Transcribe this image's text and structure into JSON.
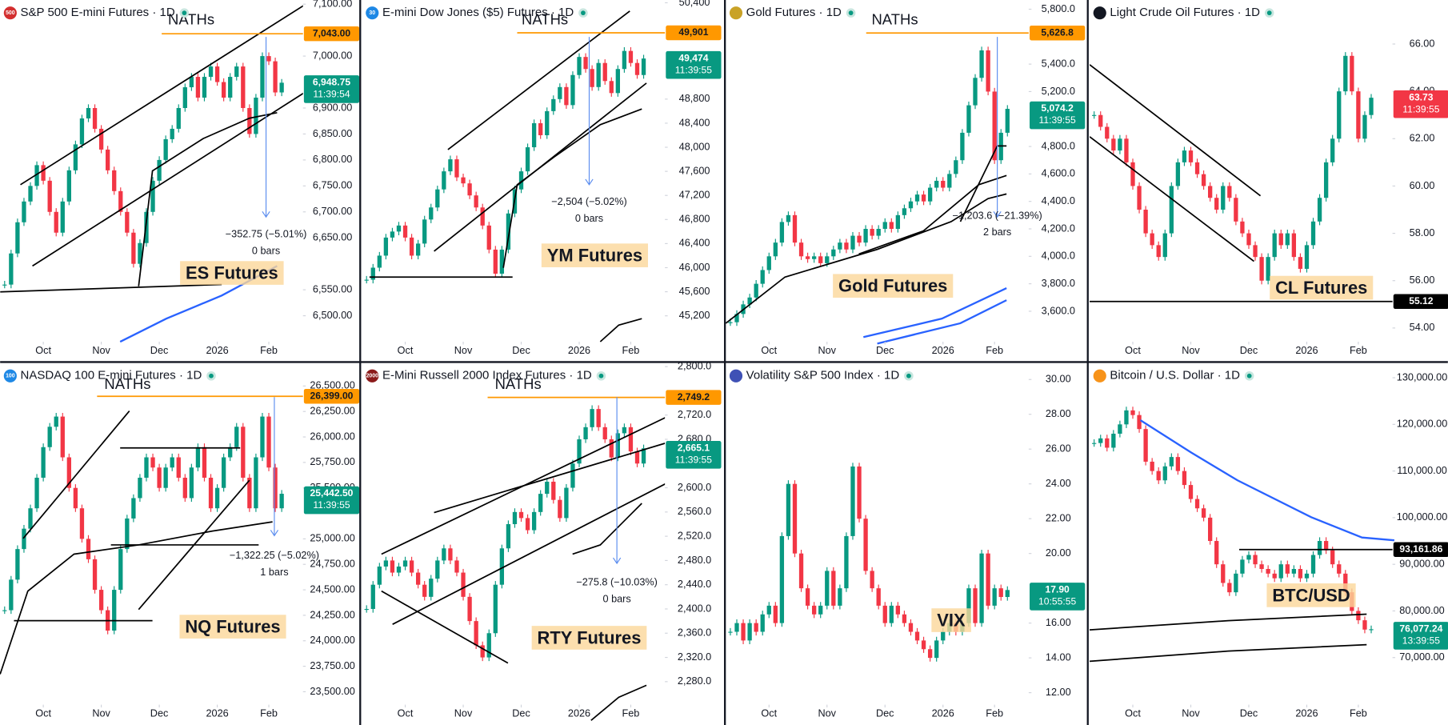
{
  "chart_data": [
    {
      "type": "candlestick",
      "title": "S&P 500 E-mini Futures · 1D",
      "badge": "500",
      "values": [
        6560,
        6620,
        6680,
        6720,
        6750,
        6790,
        6760,
        6700,
        6660,
        6720,
        6780,
        6830,
        6880,
        6900,
        6860,
        6820,
        6780,
        6740,
        6700,
        6660,
        6600,
        6640,
        6700,
        6760,
        6800,
        6840,
        6860,
        6900,
        6940,
        6960,
        6920,
        6960,
        6980,
        6950,
        6920,
        6960,
        6980,
        6900,
        6850,
        6920,
        7000,
        6990,
        6930,
        6948.75
      ],
      "xlim": [
        -0.7,
        46.3
      ],
      "xticks": [
        {
          "value": 6,
          "label": "Oct"
        },
        {
          "value": 15,
          "label": "Nov"
        },
        {
          "value": 24,
          "label": "Dec"
        },
        {
          "value": 33,
          "label": "2026"
        },
        {
          "value": 41,
          "label": "Feb"
        }
      ],
      "ylim": [
        6450,
        7108
      ],
      "yticks": [
        {
          "value": 6500,
          "label": "6,500.00"
        },
        {
          "value": 6550,
          "label": "6,550.00"
        },
        {
          "value": 6650,
          "label": "6,650.00"
        },
        {
          "value": 6700,
          "label": "6,700.00"
        },
        {
          "value": 6750,
          "label": "6,750.00"
        },
        {
          "value": 6800,
          "label": "6,800.00"
        },
        {
          "value": 6850,
          "label": "6,850.00"
        },
        {
          "value": 6900,
          "label": "6,900.00"
        },
        {
          "value": 7000,
          "label": "7,000.00"
        },
        {
          "value": 7100,
          "label": "7,100.00"
        }
      ],
      "level": {
        "value": 7043,
        "label": "7,043.00",
        "color": "#ff9800",
        "note": "NATHs"
      },
      "last": {
        "value": 6948.75,
        "label": "6,948.75",
        "time": "11:39:54",
        "color": "#089981"
      },
      "tag": "ES Futures",
      "measure": [
        "−352.75 (−5.01%)",
        "0 bars"
      ]
    },
    {
      "type": "candlestick",
      "title": "E-mini Dow Jones ($5) Futures · 1D",
      "badge": "30",
      "values": [
        45800,
        46000,
        46200,
        46500,
        46600,
        46700,
        46500,
        46200,
        46400,
        46800,
        47000,
        47300,
        47600,
        47800,
        47500,
        47400,
        47200,
        47000,
        46700,
        46300,
        45900,
        46300,
        46900,
        47300,
        47600,
        48000,
        48400,
        48200,
        48600,
        48800,
        49000,
        48700,
        49200,
        49500,
        49300,
        49000,
        49400,
        49100,
        48900,
        49300,
        49600,
        49400,
        49200,
        49474
      ],
      "xlim": [
        -0.7,
        46.3
      ],
      "xticks": [
        {
          "value": 6,
          "label": "Oct"
        },
        {
          "value": 15,
          "label": "Nov"
        },
        {
          "value": 24,
          "label": "Dec"
        },
        {
          "value": 33,
          "label": "2026"
        },
        {
          "value": 41,
          "label": "Feb"
        }
      ],
      "ylim": [
        44770,
        50446
      ],
      "yticks": [
        {
          "value": 45200,
          "label": "45,200"
        },
        {
          "value": 45600,
          "label": "45,600"
        },
        {
          "value": 46000,
          "label": "46,000"
        },
        {
          "value": 46400,
          "label": "46,400"
        },
        {
          "value": 46800,
          "label": "46,800"
        },
        {
          "value": 47200,
          "label": "47,200"
        },
        {
          "value": 47600,
          "label": "47,600"
        },
        {
          "value": 48000,
          "label": "48,000"
        },
        {
          "value": 48400,
          "label": "48,400"
        },
        {
          "value": 48800,
          "label": "48,800"
        },
        {
          "value": 50400,
          "label": "50,400"
        }
      ],
      "level": {
        "value": 49901,
        "label": "49,901",
        "color": "#ff9800",
        "note": "NATHs"
      },
      "last": {
        "value": 49474,
        "label": "49,474",
        "time": "11:39:55",
        "color": "#089981"
      },
      "tag": "YM Futures",
      "measure": [
        "−2,504 (−5.02%)",
        "0 bars"
      ]
    },
    {
      "type": "candlestick",
      "title": "Gold Futures · 1D",
      "values": [
        3520,
        3580,
        3650,
        3700,
        3800,
        3900,
        4000,
        4100,
        4250,
        4300,
        4100,
        4000,
        3980,
        4000,
        3950,
        4000,
        4050,
        4100,
        4050,
        4150,
        4100,
        4200,
        4150,
        4200,
        4250,
        4200,
        4300,
        4350,
        4400,
        4450,
        4400,
        4500,
        4550,
        4500,
        4600,
        4700,
        4900,
        5100,
        5300,
        5500,
        5200,
        4700,
        4900,
        5074.2
      ],
      "xlim": [
        -0.7,
        46.3
      ],
      "xticks": [
        {
          "value": 6,
          "label": "Oct"
        },
        {
          "value": 15,
          "label": "Nov"
        },
        {
          "value": 24,
          "label": "Dec"
        },
        {
          "value": 33,
          "label": "2026"
        },
        {
          "value": 41,
          "label": "Feb"
        }
      ],
      "ylim": [
        3378,
        5867
      ],
      "yticks": [
        {
          "value": 3600,
          "label": "3,600.0"
        },
        {
          "value": 3800,
          "label": "3,800.0"
        },
        {
          "value": 4000,
          "label": "4,000.0"
        },
        {
          "value": 4200,
          "label": "4,200.0"
        },
        {
          "value": 4400,
          "label": "4,400.0"
        },
        {
          "value": 4600,
          "label": "4,600.0"
        },
        {
          "value": 4800,
          "label": "4,800.0"
        },
        {
          "value": 5200,
          "label": "5,200.0"
        },
        {
          "value": 5400,
          "label": "5,400.0"
        },
        {
          "value": 5800,
          "label": "5,800.0"
        }
      ],
      "level": {
        "value": 5626.8,
        "label": "5,626.8",
        "color": "#ff9800",
        "note": "NATHs"
      },
      "last": {
        "value": 5074.2,
        "label": "5,074.2",
        "time": "11:39:55",
        "color": "#089981"
      },
      "tag": "Gold Futures",
      "measure": [
        "−1,203.6 (−21.39%)",
        "2 bars"
      ]
    },
    {
      "type": "candlestick",
      "title": "Light Crude Oil Futures · 1D",
      "values": [
        63,
        62.5,
        62,
        61.5,
        62,
        61,
        60,
        59,
        58,
        57.5,
        57,
        58,
        60,
        61,
        61.5,
        61,
        60.5,
        60,
        59.5,
        59,
        60,
        59.5,
        58.5,
        58,
        57.5,
        57,
        56,
        57,
        58,
        57.5,
        58,
        57,
        56.5,
        57.5,
        58.5,
        59.5,
        61,
        62,
        64,
        65.5,
        64,
        62,
        63,
        63.73
      ],
      "xlim": [
        -0.7,
        46.3
      ],
      "xticks": [
        {
          "value": 6,
          "label": "Oct"
        },
        {
          "value": 15,
          "label": "Nov"
        },
        {
          "value": 24,
          "label": "Dec"
        },
        {
          "value": 33,
          "label": "2026"
        },
        {
          "value": 41,
          "label": "Feb"
        }
      ],
      "ylim": [
        53.42,
        67.86
      ],
      "yticks": [
        {
          "value": 54,
          "label": "54.00"
        },
        {
          "value": 56,
          "label": "56.00"
        },
        {
          "value": 58,
          "label": "58.00"
        },
        {
          "value": 60,
          "label": "60.00"
        },
        {
          "value": 62,
          "label": "62.00"
        },
        {
          "value": 64,
          "label": "64.00"
        },
        {
          "value": 66,
          "label": "66.00"
        }
      ],
      "level": {
        "value": 55.12,
        "label": "55.12",
        "color": "#000000"
      },
      "last": {
        "value": 63.73,
        "label": "63.73",
        "time": "11:39:55",
        "color": "#f23645"
      },
      "tag": "CL Futures"
    },
    {
      "type": "candlestick",
      "title": "NASDAQ 100 E-mini Futures · 1D",
      "badge": "100",
      "values": [
        24300,
        24600,
        24900,
        25100,
        25300,
        25600,
        25900,
        26100,
        26200,
        25800,
        25500,
        25300,
        25000,
        24800,
        24500,
        24300,
        24100,
        24500,
        24900,
        25200,
        25400,
        25600,
        25800,
        25700,
        25500,
        25700,
        25800,
        25600,
        25400,
        25700,
        25900,
        25600,
        25300,
        25500,
        25800,
        25900,
        26100,
        25600,
        25300,
        25800,
        26200,
        25700,
        25300,
        25442.5
      ],
      "xlim": [
        -0.7,
        46.3
      ],
      "xticks": [
        {
          "value": 6,
          "label": "Oct"
        },
        {
          "value": 15,
          "label": "Nov"
        },
        {
          "value": 24,
          "label": "Dec"
        },
        {
          "value": 33,
          "label": "2026"
        },
        {
          "value": 41,
          "label": "Feb"
        }
      ],
      "ylim": [
        23373,
        26726
      ],
      "yticks": [
        {
          "value": 23500,
          "label": "23,500.00"
        },
        {
          "value": 23750,
          "label": "23,750.00"
        },
        {
          "value": 24000,
          "label": "24,000.00"
        },
        {
          "value": 24250,
          "label": "24,250.00"
        },
        {
          "value": 24500,
          "label": "24,500.00"
        },
        {
          "value": 24750,
          "label": "24,750.00"
        },
        {
          "value": 25000,
          "label": "25,000.00"
        },
        {
          "value": 25500,
          "label": "25,500.00"
        },
        {
          "value": 25750,
          "label": "25,750.00"
        },
        {
          "value": 26000,
          "label": "26,000.00"
        },
        {
          "value": 26250,
          "label": "26,250.00"
        },
        {
          "value": 26500,
          "label": "26,500.00"
        }
      ],
      "level": {
        "value": 26399,
        "label": "26,399.00",
        "color": "#ff9800",
        "note": "NATHs"
      },
      "last": {
        "value": 25442.5,
        "label": "25,442.50",
        "time": "11:39:55",
        "color": "#089981"
      },
      "tag": "NQ Futures",
      "measure": [
        "−1,322.25 (−5.02%)",
        "1 bars"
      ]
    },
    {
      "type": "candlestick",
      "title": "E-Mini Russell 2000 Index Futures · 1D",
      "badge": "2000",
      "values": [
        2400,
        2440,
        2470,
        2480,
        2460,
        2470,
        2480,
        2460,
        2440,
        2420,
        2450,
        2480,
        2500,
        2480,
        2460,
        2420,
        2380,
        2340,
        2320,
        2360,
        2440,
        2500,
        2540,
        2560,
        2550,
        2530,
        2560,
        2590,
        2610,
        2580,
        2550,
        2600,
        2640,
        2680,
        2700,
        2730,
        2700,
        2680,
        2650,
        2690,
        2700,
        2660,
        2640,
        2665.1
      ],
      "xlim": [
        -0.7,
        46.3
      ],
      "xticks": [
        {
          "value": 6,
          "label": "Oct"
        },
        {
          "value": 15,
          "label": "Nov"
        },
        {
          "value": 24,
          "label": "Dec"
        },
        {
          "value": 33,
          "label": "2026"
        },
        {
          "value": 41,
          "label": "Feb"
        }
      ],
      "ylim": [
        2242,
        2806
      ],
      "yticks": [
        {
          "value": 2280,
          "label": "2,280.0"
        },
        {
          "value": 2320,
          "label": "2,320.0"
        },
        {
          "value": 2360,
          "label": "2,360.0"
        },
        {
          "value": 2400,
          "label": "2,400.0"
        },
        {
          "value": 2440,
          "label": "2,440.0"
        },
        {
          "value": 2480,
          "label": "2,480.0"
        },
        {
          "value": 2520,
          "label": "2,520.0"
        },
        {
          "value": 2560,
          "label": "2,560.0"
        },
        {
          "value": 2600,
          "label": "2,600.0"
        },
        {
          "value": 2680,
          "label": "2,680.0"
        },
        {
          "value": 2720,
          "label": "2,720.0"
        },
        {
          "value": 2800,
          "label": "2,800.0"
        }
      ],
      "level": {
        "value": 2749.2,
        "label": "2,749.2",
        "color": "#ff9800",
        "note": "NATHs"
      },
      "last": {
        "value": 2665.1,
        "label": "2,665.1",
        "time": "11:39:55",
        "color": "#089981"
      },
      "tag": "RTY Futures",
      "measure": [
        "−275.8 (−10.03%)",
        "0 bars"
      ]
    },
    {
      "type": "candlestick",
      "title": "Volatility S&P 500 Index · 1D",
      "values": [
        15.5,
        16,
        15,
        16,
        15.5,
        16.5,
        17,
        16,
        21,
        24,
        20,
        18,
        17,
        16.5,
        17,
        19,
        17,
        18,
        21,
        25,
        22,
        19,
        18,
        17,
        16,
        17,
        16.5,
        16,
        15.5,
        15,
        14.5,
        14,
        15,
        15.5,
        16,
        15.5,
        16,
        18,
        16,
        20,
        17,
        18,
        17.5,
        17.9
      ],
      "xlim": [
        -0.7,
        46.3
      ],
      "xticks": [
        {
          "value": 6,
          "label": "Oct"
        },
        {
          "value": 15,
          "label": "Nov"
        },
        {
          "value": 24,
          "label": "Dec"
        },
        {
          "value": 33,
          "label": "2026"
        },
        {
          "value": 41,
          "label": "Feb"
        }
      ],
      "ylim": [
        11.31,
        30.95
      ],
      "yticks": [
        {
          "value": 12,
          "label": "12.00"
        },
        {
          "value": 14,
          "label": "14.00"
        },
        {
          "value": 16,
          "label": "16.00"
        },
        {
          "value": 20,
          "label": "20.00"
        },
        {
          "value": 22,
          "label": "22.00"
        },
        {
          "value": 24,
          "label": "24.00"
        },
        {
          "value": 26,
          "label": "26.00"
        },
        {
          "value": 28,
          "label": "28.00"
        },
        {
          "value": 30,
          "label": "30.00"
        }
      ],
      "last": {
        "value": 17.9,
        "label": "17.90",
        "time": "10:55:55",
        "color": "#089981"
      },
      "tag": "VIX"
    },
    {
      "type": "candlestick",
      "title": "Bitcoin / U.S. Dollar · 1D",
      "values": [
        116000,
        117000,
        115000,
        118000,
        120000,
        123000,
        122000,
        119000,
        112000,
        110000,
        108000,
        111000,
        113000,
        110000,
        107000,
        104000,
        102000,
        100000,
        95000,
        90000,
        86000,
        84000,
        88000,
        91000,
        92000,
        90000,
        89000,
        88000,
        87000,
        90000,
        88000,
        89000,
        87000,
        88000,
        92000,
        95000,
        93000,
        90000,
        88000,
        84000,
        80000,
        78000,
        76000,
        76077.24
      ],
      "xlim": [
        -0.7,
        46.3
      ],
      "xticks": [
        {
          "value": 6,
          "label": "Oct"
        },
        {
          "value": 15,
          "label": "Nov"
        },
        {
          "value": 24,
          "label": "Dec"
        },
        {
          "value": 33,
          "label": "2026"
        },
        {
          "value": 41,
          "label": "Feb"
        }
      ],
      "ylim": [
        59900,
        133168
      ],
      "yticks": [
        {
          "value": 70000,
          "label": "70,000.00"
        },
        {
          "value": 80000,
          "label": "80,000.00"
        },
        {
          "value": 90000,
          "label": "90,000.00"
        },
        {
          "value": 100000,
          "label": "100,000.00"
        },
        {
          "value": 110000,
          "label": "110,000.00"
        },
        {
          "value": 120000,
          "label": "120,000.00"
        },
        {
          "value": 130000,
          "label": "130,000.00"
        }
      ],
      "level": {
        "value": 93161.86,
        "label": "93,161.86",
        "color": "#000000"
      },
      "last": {
        "value": 76077.24,
        "label": "76,077.24",
        "time": "13:39:55",
        "color": "#089981"
      },
      "tag": "BTC/USD"
    }
  ]
}
